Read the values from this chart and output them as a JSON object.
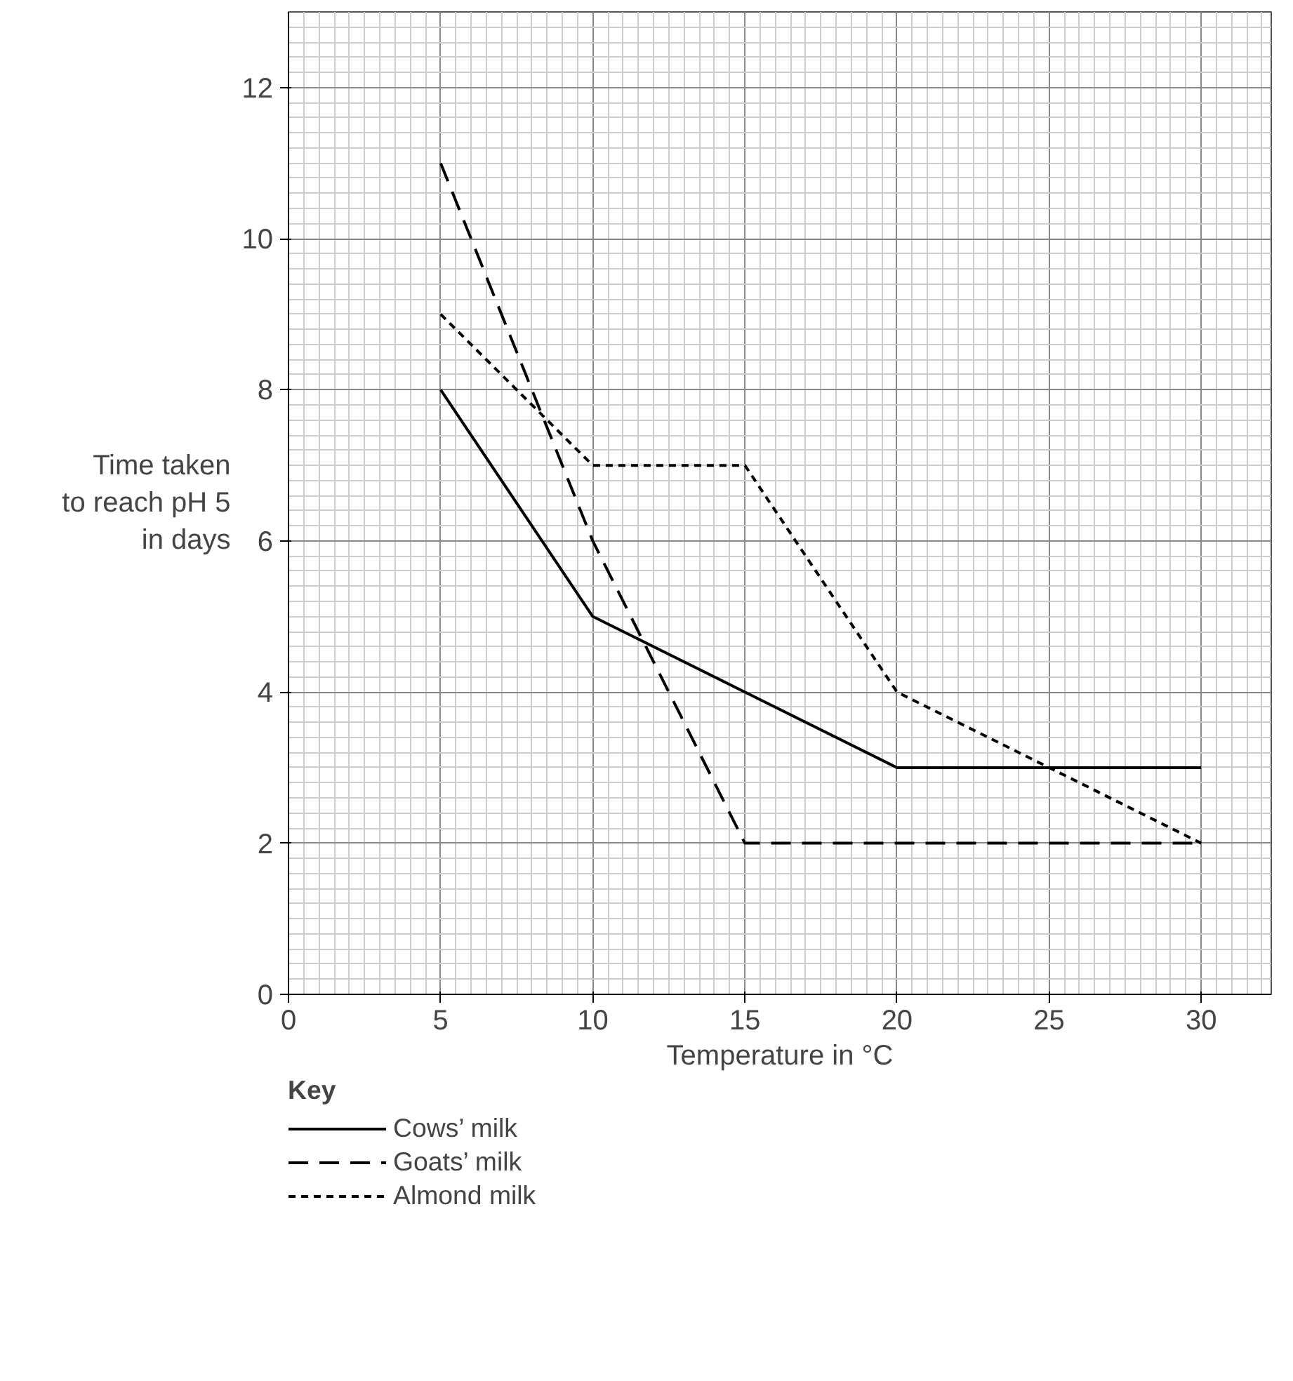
{
  "chart_data": {
    "type": "line",
    "xlabel": "Temperature in °C",
    "ylabel": "Time taken\nto reach pH 5\nin days",
    "legend_title": "Key",
    "x": [
      5,
      10,
      15,
      20,
      25,
      30
    ],
    "series": [
      {
        "name": "Cows’ milk",
        "color": "#000000",
        "line_style": "solid",
        "values": [
          8,
          5,
          4,
          3,
          3,
          3
        ]
      },
      {
        "name": "Goats’ milk",
        "color": "#000000",
        "line_style": "dashed",
        "values": [
          11,
          6,
          2,
          2,
          2,
          2
        ]
      },
      {
        "name": "Almond milk",
        "color": "#000000",
        "line_style": "dotted",
        "values": [
          9,
          7,
          7,
          4,
          3,
          2
        ]
      }
    ],
    "xlim": [
      0,
      32.3
    ],
    "ylim": [
      0,
      13
    ],
    "xticks": [
      0,
      5,
      10,
      15,
      20,
      25,
      30
    ],
    "yticks": [
      0,
      2,
      4,
      6,
      8,
      10,
      12
    ],
    "grid": true,
    "legend": "bottom",
    "marker": "none"
  }
}
